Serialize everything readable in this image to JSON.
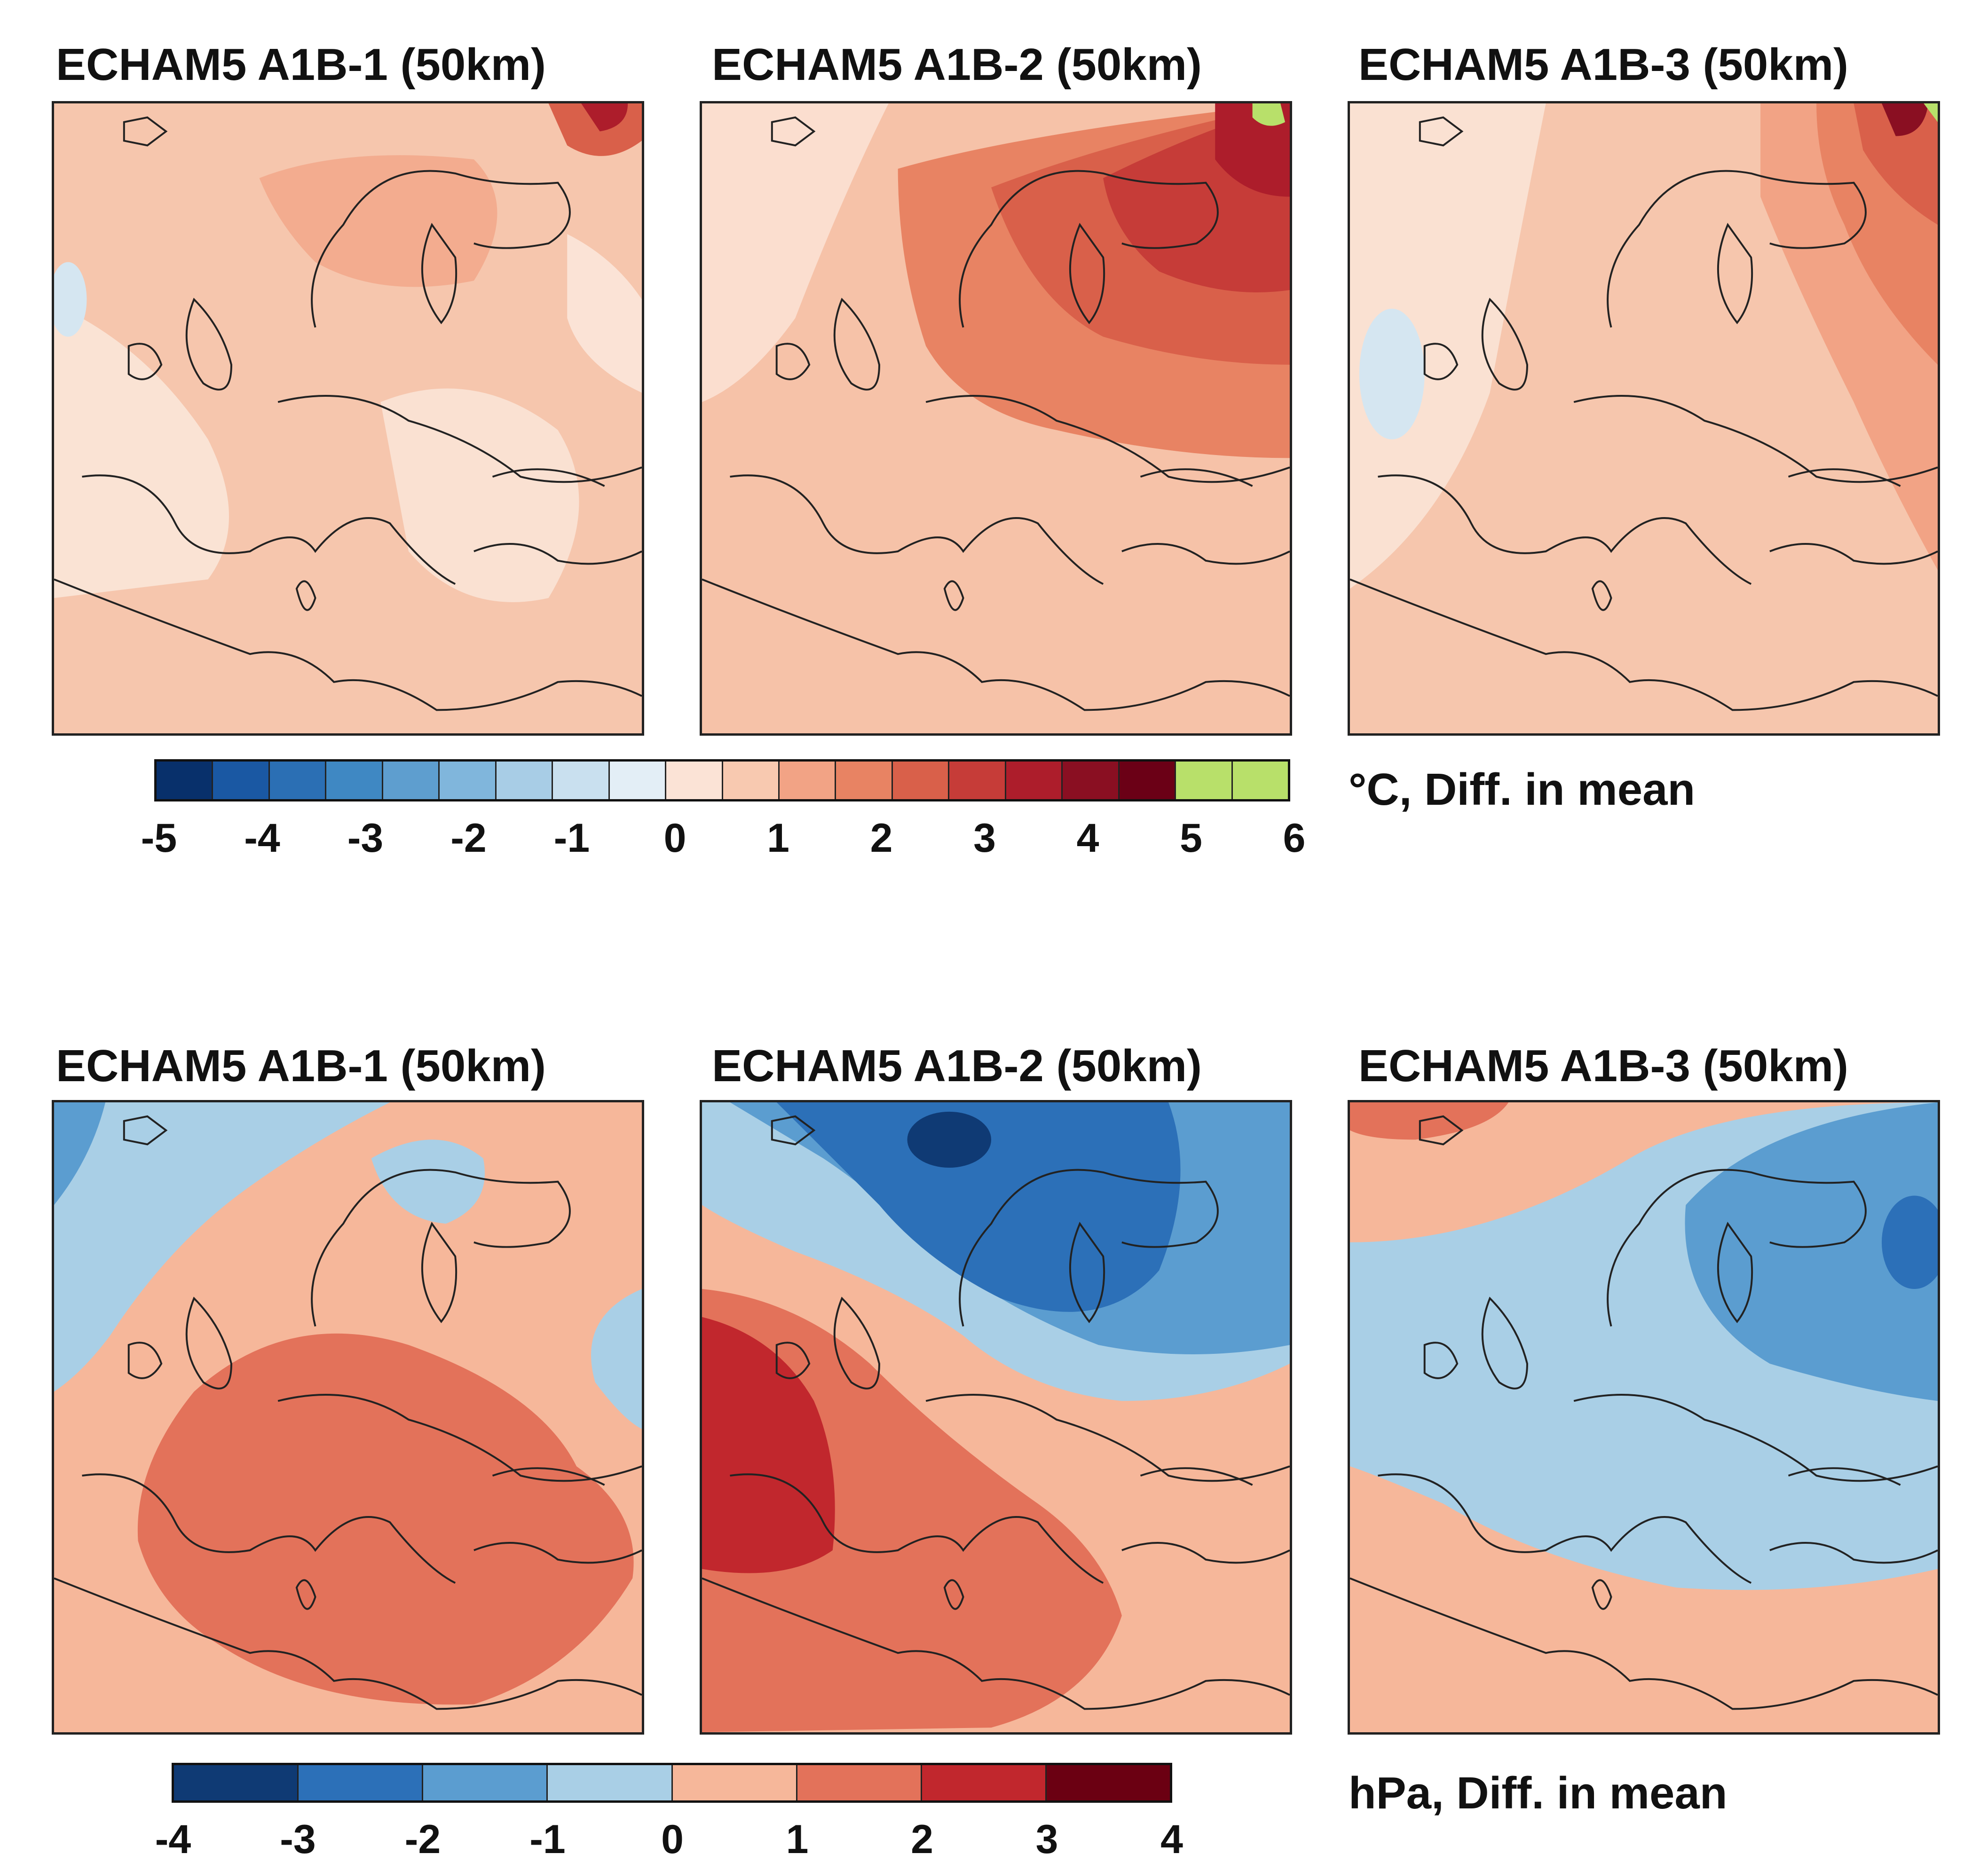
{
  "top_row": {
    "panels": [
      {
        "title": "ECHAM5 A1B-1 (50km)"
      },
      {
        "title": "ECHAM5 A1B-2 (50km)"
      },
      {
        "title": "ECHAM5 A1B-3 (50km)"
      }
    ],
    "colorbar": {
      "unit_label": "°C, Diff. in mean",
      "ticks": [
        "-5",
        "-4",
        "-3",
        "-2",
        "-1",
        "0",
        "1",
        "2",
        "3",
        "4",
        "5",
        "6"
      ],
      "bins": [
        {
          "color": "#08306b"
        },
        {
          "color": "#1a58a3"
        },
        {
          "color": "#2b6fb4"
        },
        {
          "color": "#3f88c3"
        },
        {
          "color": "#5e9ecf"
        },
        {
          "color": "#80b6dc"
        },
        {
          "color": "#a8cde6"
        },
        {
          "color": "#c9e0ef"
        },
        {
          "color": "#e3eef6"
        },
        {
          "color": "#fbe3d6"
        },
        {
          "color": "#f8c9b0"
        },
        {
          "color": "#f2a385"
        },
        {
          "color": "#e88363"
        },
        {
          "color": "#d9604a"
        },
        {
          "color": "#c63c38"
        },
        {
          "color": "#ad1d2b"
        },
        {
          "color": "#8a0f22"
        },
        {
          "color": "#6b0016"
        },
        {
          "color": "#b8e06a"
        },
        {
          "color": "#b8e06a"
        }
      ]
    }
  },
  "bottom_row": {
    "panels": [
      {
        "title": "ECHAM5 A1B-1 (50km)"
      },
      {
        "title": "ECHAM5 A1B-2 (50km)"
      },
      {
        "title": "ECHAM5 A1B-3 (50km)"
      }
    ],
    "colorbar": {
      "unit_label": "hPa, Diff. in mean",
      "ticks": [
        "-4",
        "-3",
        "-2",
        "-1",
        "0",
        "1",
        "2",
        "3",
        "4"
      ],
      "bins": [
        {
          "color": "#0f3a74"
        },
        {
          "color": "#2c70b8"
        },
        {
          "color": "#5b9dd0"
        },
        {
          "color": "#a9cfe6"
        },
        {
          "color": "#f6b79a"
        },
        {
          "color": "#e3725a"
        },
        {
          "color": "#c1272d"
        },
        {
          "color": "#6b0012"
        }
      ]
    }
  }
}
